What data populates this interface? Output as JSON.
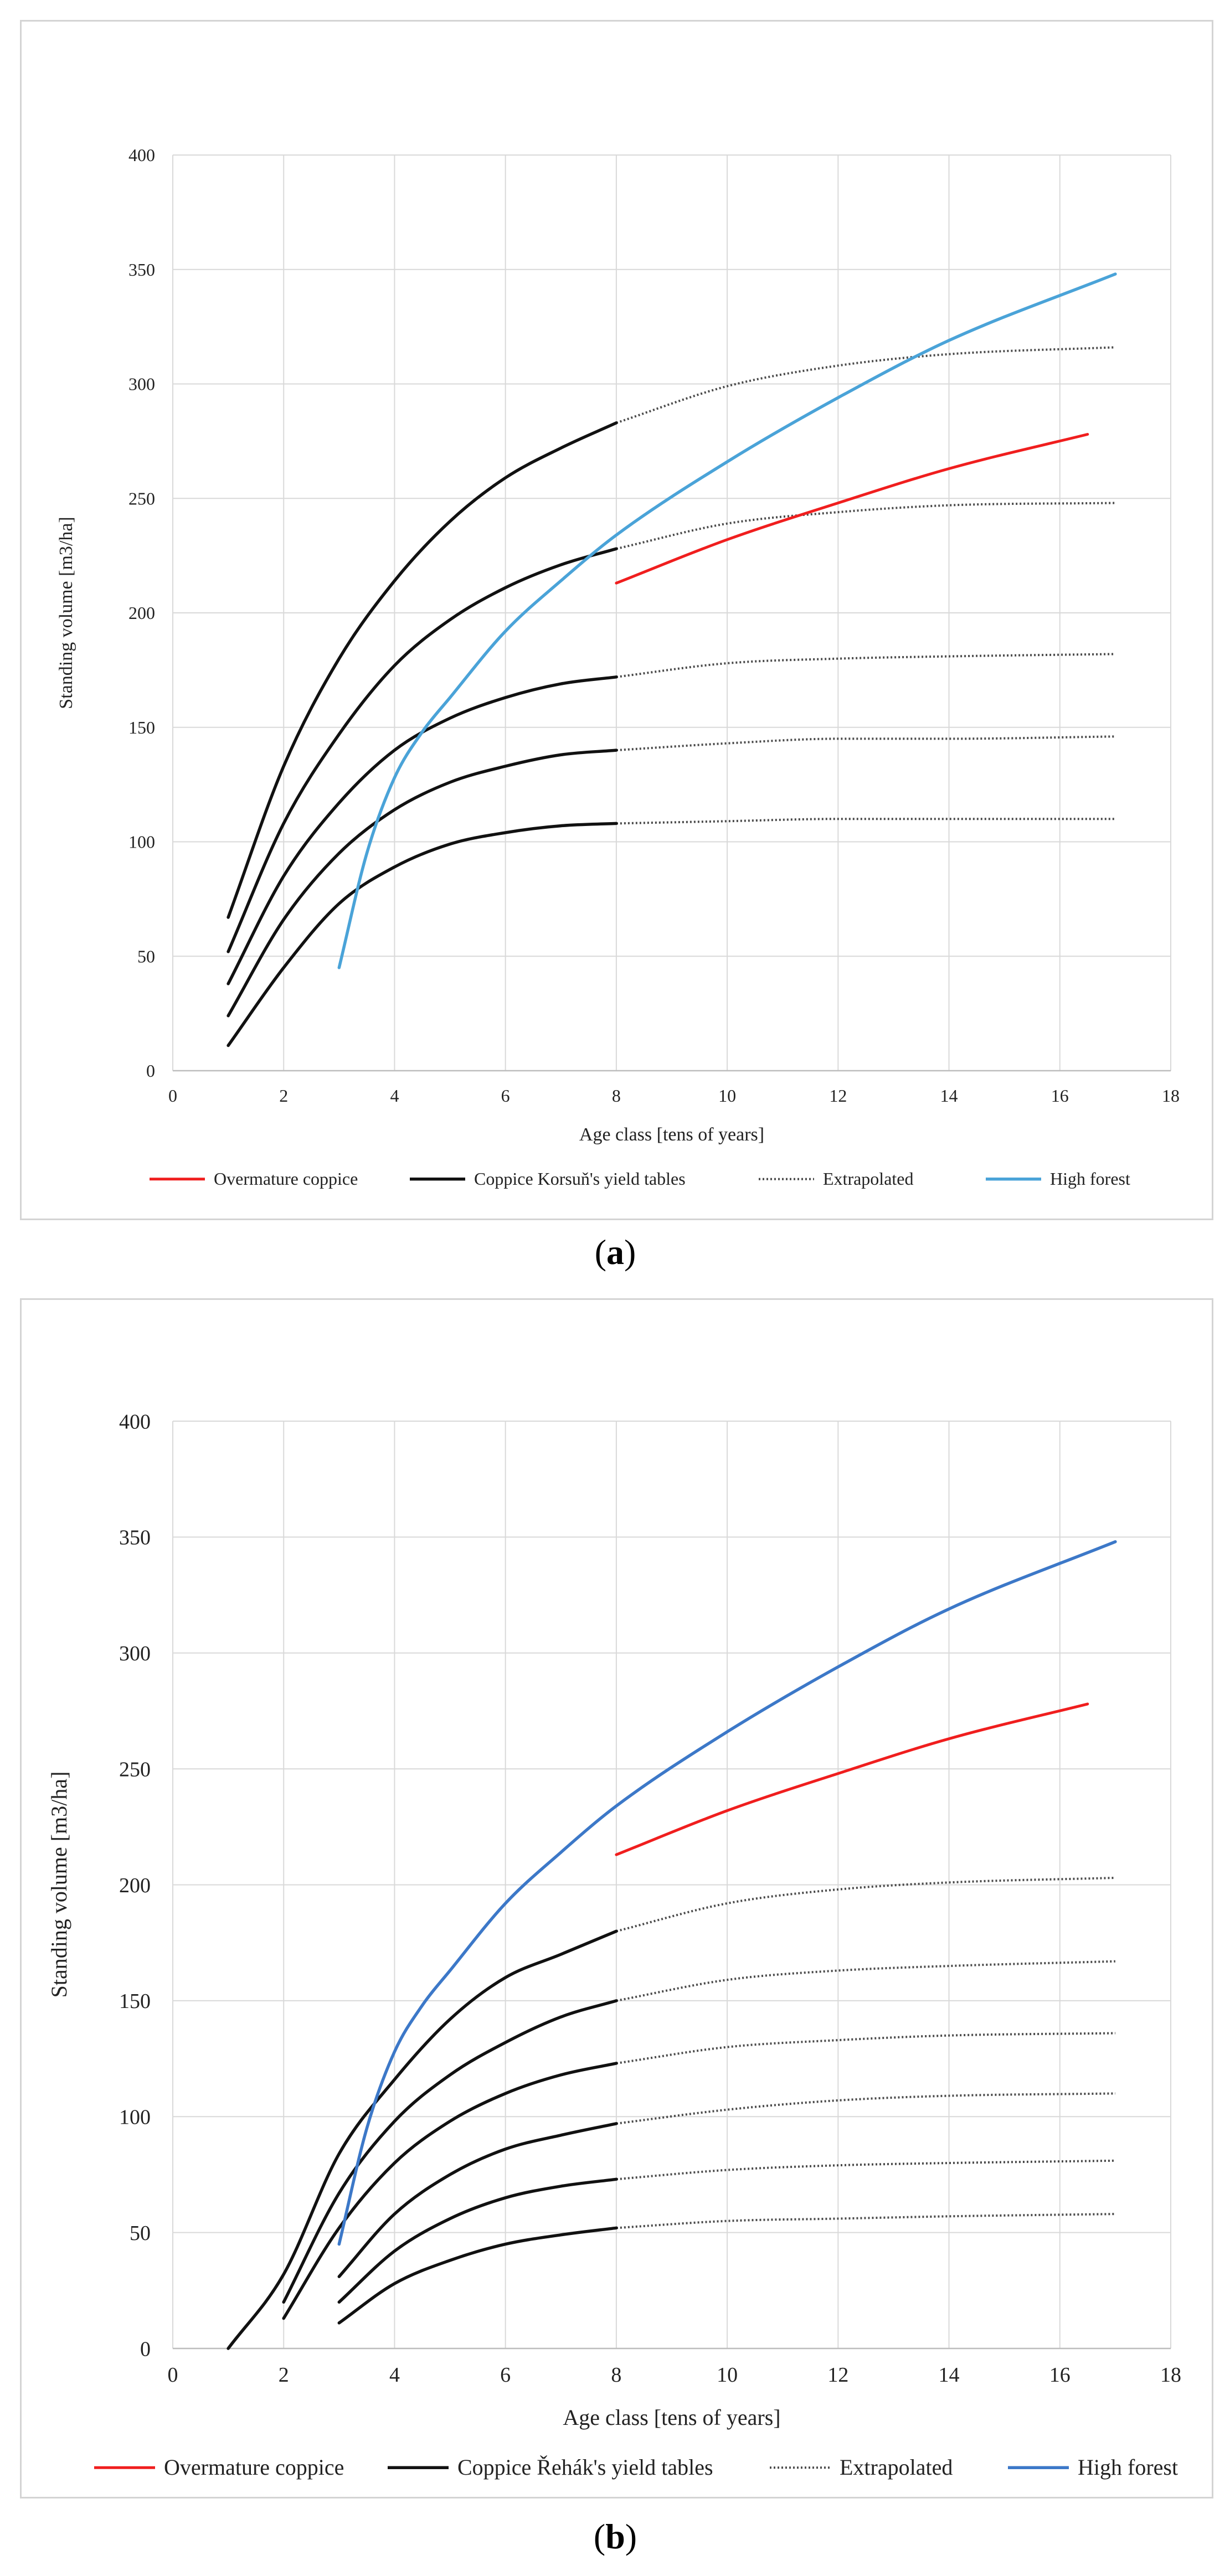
{
  "panels": {
    "a": {
      "label_open": "(",
      "label_letter": "a",
      "label_close": ")"
    },
    "b": {
      "label_open": "(",
      "label_letter": "b",
      "label_close": ")"
    }
  },
  "colors": {
    "overmature": "#f01e1e",
    "coppice": "#111111",
    "extrapolated": "#4a4a4a",
    "high_forest_a": "#4aa3d8",
    "high_forest_b": "#3c78c8",
    "grid": "#d9d9d9",
    "axis": "#bdbdbd"
  },
  "chart_data": [
    {
      "type": "line",
      "panel": "a",
      "xlabel": "Age class [tens of years]",
      "ylabel": "Standing volume [m3/ha]",
      "xlim": [
        0,
        18
      ],
      "ylim": [
        0,
        400
      ],
      "xticks": [
        0,
        2,
        4,
        6,
        8,
        10,
        12,
        14,
        16,
        18
      ],
      "yticks": [
        0,
        50,
        100,
        150,
        200,
        250,
        300,
        350,
        400
      ],
      "legend_position": "bottom",
      "legend": [
        "Overmature coppice",
        "Coppice Korsuň's yield tables",
        "Extrapolated",
        "High forest"
      ],
      "series": [
        {
          "name": "Coppice Korsuň's yield tables",
          "role": "coppice",
          "x": [
            1,
            2,
            3,
            4,
            5,
            6,
            7,
            8
          ],
          "y": [
            67,
            133,
            180,
            214,
            240,
            259,
            272,
            283
          ]
        },
        {
          "name": "Coppice Korsuň's yield tables",
          "role": "coppice",
          "x": [
            1,
            2,
            3,
            4,
            5,
            6,
            7,
            8
          ],
          "y": [
            52,
            108,
            147,
            177,
            197,
            211,
            221,
            228
          ]
        },
        {
          "name": "Coppice Korsuň's yield tables",
          "role": "coppice",
          "x": [
            1,
            2,
            3,
            4,
            5,
            6,
            7,
            8
          ],
          "y": [
            38,
            85,
            117,
            140,
            154,
            163,
            169,
            172
          ]
        },
        {
          "name": "Coppice Korsuň's yield tables",
          "role": "coppice",
          "x": [
            1,
            2,
            3,
            4,
            5,
            6,
            7,
            8
          ],
          "y": [
            24,
            66,
            95,
            114,
            126,
            133,
            138,
            140
          ]
        },
        {
          "name": "Coppice Korsuň's yield tables",
          "role": "coppice",
          "x": [
            1,
            2,
            3,
            4,
            5,
            6,
            7,
            8
          ],
          "y": [
            11,
            45,
            73,
            89,
            99,
            104,
            107,
            108
          ]
        },
        {
          "name": "Extrapolated",
          "role": "extrapolated",
          "x": [
            8,
            10,
            12,
            14,
            17
          ],
          "y": [
            283,
            299,
            308,
            313,
            316
          ]
        },
        {
          "name": "Extrapolated",
          "role": "extrapolated",
          "x": [
            8,
            10,
            12,
            14,
            17
          ],
          "y": [
            228,
            239,
            244,
            247,
            248
          ]
        },
        {
          "name": "Extrapolated",
          "role": "extrapolated",
          "x": [
            8,
            10,
            12,
            14,
            17
          ],
          "y": [
            172,
            178,
            180,
            181,
            182
          ]
        },
        {
          "name": "Extrapolated",
          "role": "extrapolated",
          "x": [
            8,
            10,
            12,
            14,
            17
          ],
          "y": [
            140,
            143,
            145,
            145,
            146
          ]
        },
        {
          "name": "Extrapolated",
          "role": "extrapolated",
          "x": [
            8,
            10,
            12,
            14,
            17
          ],
          "y": [
            108,
            109,
            110,
            110,
            110
          ]
        },
        {
          "name": "Overmature coppice",
          "role": "overmature",
          "x": [
            8,
            10,
            12,
            14,
            16.5
          ],
          "y": [
            213,
            232,
            248,
            263,
            278
          ]
        },
        {
          "name": "High forest",
          "role": "high_forest",
          "x": [
            3,
            3.5,
            4,
            4.5,
            5,
            6,
            7,
            8,
            10,
            12,
            14,
            17
          ],
          "y": [
            45,
            95,
            128,
            148,
            163,
            192,
            214,
            234,
            266,
            294,
            319,
            348
          ]
        }
      ]
    },
    {
      "type": "line",
      "panel": "b",
      "xlabel": "Age class [tens of years]",
      "ylabel": "Standing volume [m3/ha]",
      "xlim": [
        0,
        18
      ],
      "ylim": [
        0,
        400
      ],
      "xticks": [
        0,
        2,
        4,
        6,
        8,
        10,
        12,
        14,
        16,
        18
      ],
      "yticks": [
        0,
        50,
        100,
        150,
        200,
        250,
        300,
        350,
        400
      ],
      "legend_position": "bottom",
      "legend": [
        "Overmature coppice",
        "Coppice Řehák's yield tables",
        "Extrapolated",
        "High forest"
      ],
      "series": [
        {
          "name": "Coppice Řehák's yield tables",
          "role": "coppice",
          "x": [
            1,
            2,
            3,
            4,
            5,
            6,
            7,
            8
          ],
          "y": [
            0,
            32,
            84,
            116,
            142,
            160,
            170,
            180
          ]
        },
        {
          "name": "Coppice Řehák's yield tables",
          "role": "coppice",
          "x": [
            2,
            3,
            4,
            5,
            6,
            7,
            8
          ],
          "y": [
            20,
            67,
            98,
            118,
            132,
            143,
            150
          ]
        },
        {
          "name": "Coppice Řehák's yield tables",
          "role": "coppice",
          "x": [
            2,
            3,
            4,
            5,
            6,
            7,
            8
          ],
          "y": [
            13,
            52,
            80,
            98,
            110,
            118,
            123
          ]
        },
        {
          "name": "Coppice Řehák's yield tables",
          "role": "coppice",
          "x": [
            3,
            4,
            5,
            6,
            7,
            8
          ],
          "y": [
            31,
            58,
            75,
            86,
            92,
            97
          ]
        },
        {
          "name": "Coppice Řehák's yield tables",
          "role": "coppice",
          "x": [
            3,
            4,
            5,
            6,
            7,
            8
          ],
          "y": [
            20,
            42,
            56,
            65,
            70,
            73
          ]
        },
        {
          "name": "Coppice Řehák's yield tables",
          "role": "coppice",
          "x": [
            3,
            4,
            5,
            6,
            7,
            8
          ],
          "y": [
            11,
            28,
            38,
            45,
            49,
            52
          ]
        },
        {
          "name": "Extrapolated",
          "role": "extrapolated",
          "x": [
            8,
            10,
            12,
            14,
            17
          ],
          "y": [
            180,
            192,
            198,
            201,
            203
          ]
        },
        {
          "name": "Extrapolated",
          "role": "extrapolated",
          "x": [
            8,
            10,
            12,
            14,
            17
          ],
          "y": [
            150,
            159,
            163,
            165,
            167
          ]
        },
        {
          "name": "Extrapolated",
          "role": "extrapolated",
          "x": [
            8,
            10,
            12,
            14,
            17
          ],
          "y": [
            123,
            130,
            133,
            135,
            136
          ]
        },
        {
          "name": "Extrapolated",
          "role": "extrapolated",
          "x": [
            8,
            10,
            12,
            14,
            17
          ],
          "y": [
            97,
            103,
            107,
            109,
            110
          ]
        },
        {
          "name": "Extrapolated",
          "role": "extrapolated",
          "x": [
            8,
            10,
            12,
            14,
            17
          ],
          "y": [
            73,
            77,
            79,
            80,
            81
          ]
        },
        {
          "name": "Extrapolated",
          "role": "extrapolated",
          "x": [
            8,
            10,
            12,
            14,
            17
          ],
          "y": [
            52,
            55,
            56,
            57,
            58
          ]
        },
        {
          "name": "Overmature coppice",
          "role": "overmature",
          "x": [
            8,
            10,
            12,
            14,
            16.5
          ],
          "y": [
            213,
            232,
            248,
            263,
            278
          ]
        },
        {
          "name": "High forest",
          "role": "high_forest",
          "x": [
            3,
            3.5,
            4,
            4.5,
            5,
            6,
            7,
            8,
            10,
            12,
            14,
            17
          ],
          "y": [
            45,
            95,
            128,
            148,
            163,
            192,
            214,
            234,
            266,
            294,
            319,
            348
          ]
        }
      ]
    }
  ]
}
